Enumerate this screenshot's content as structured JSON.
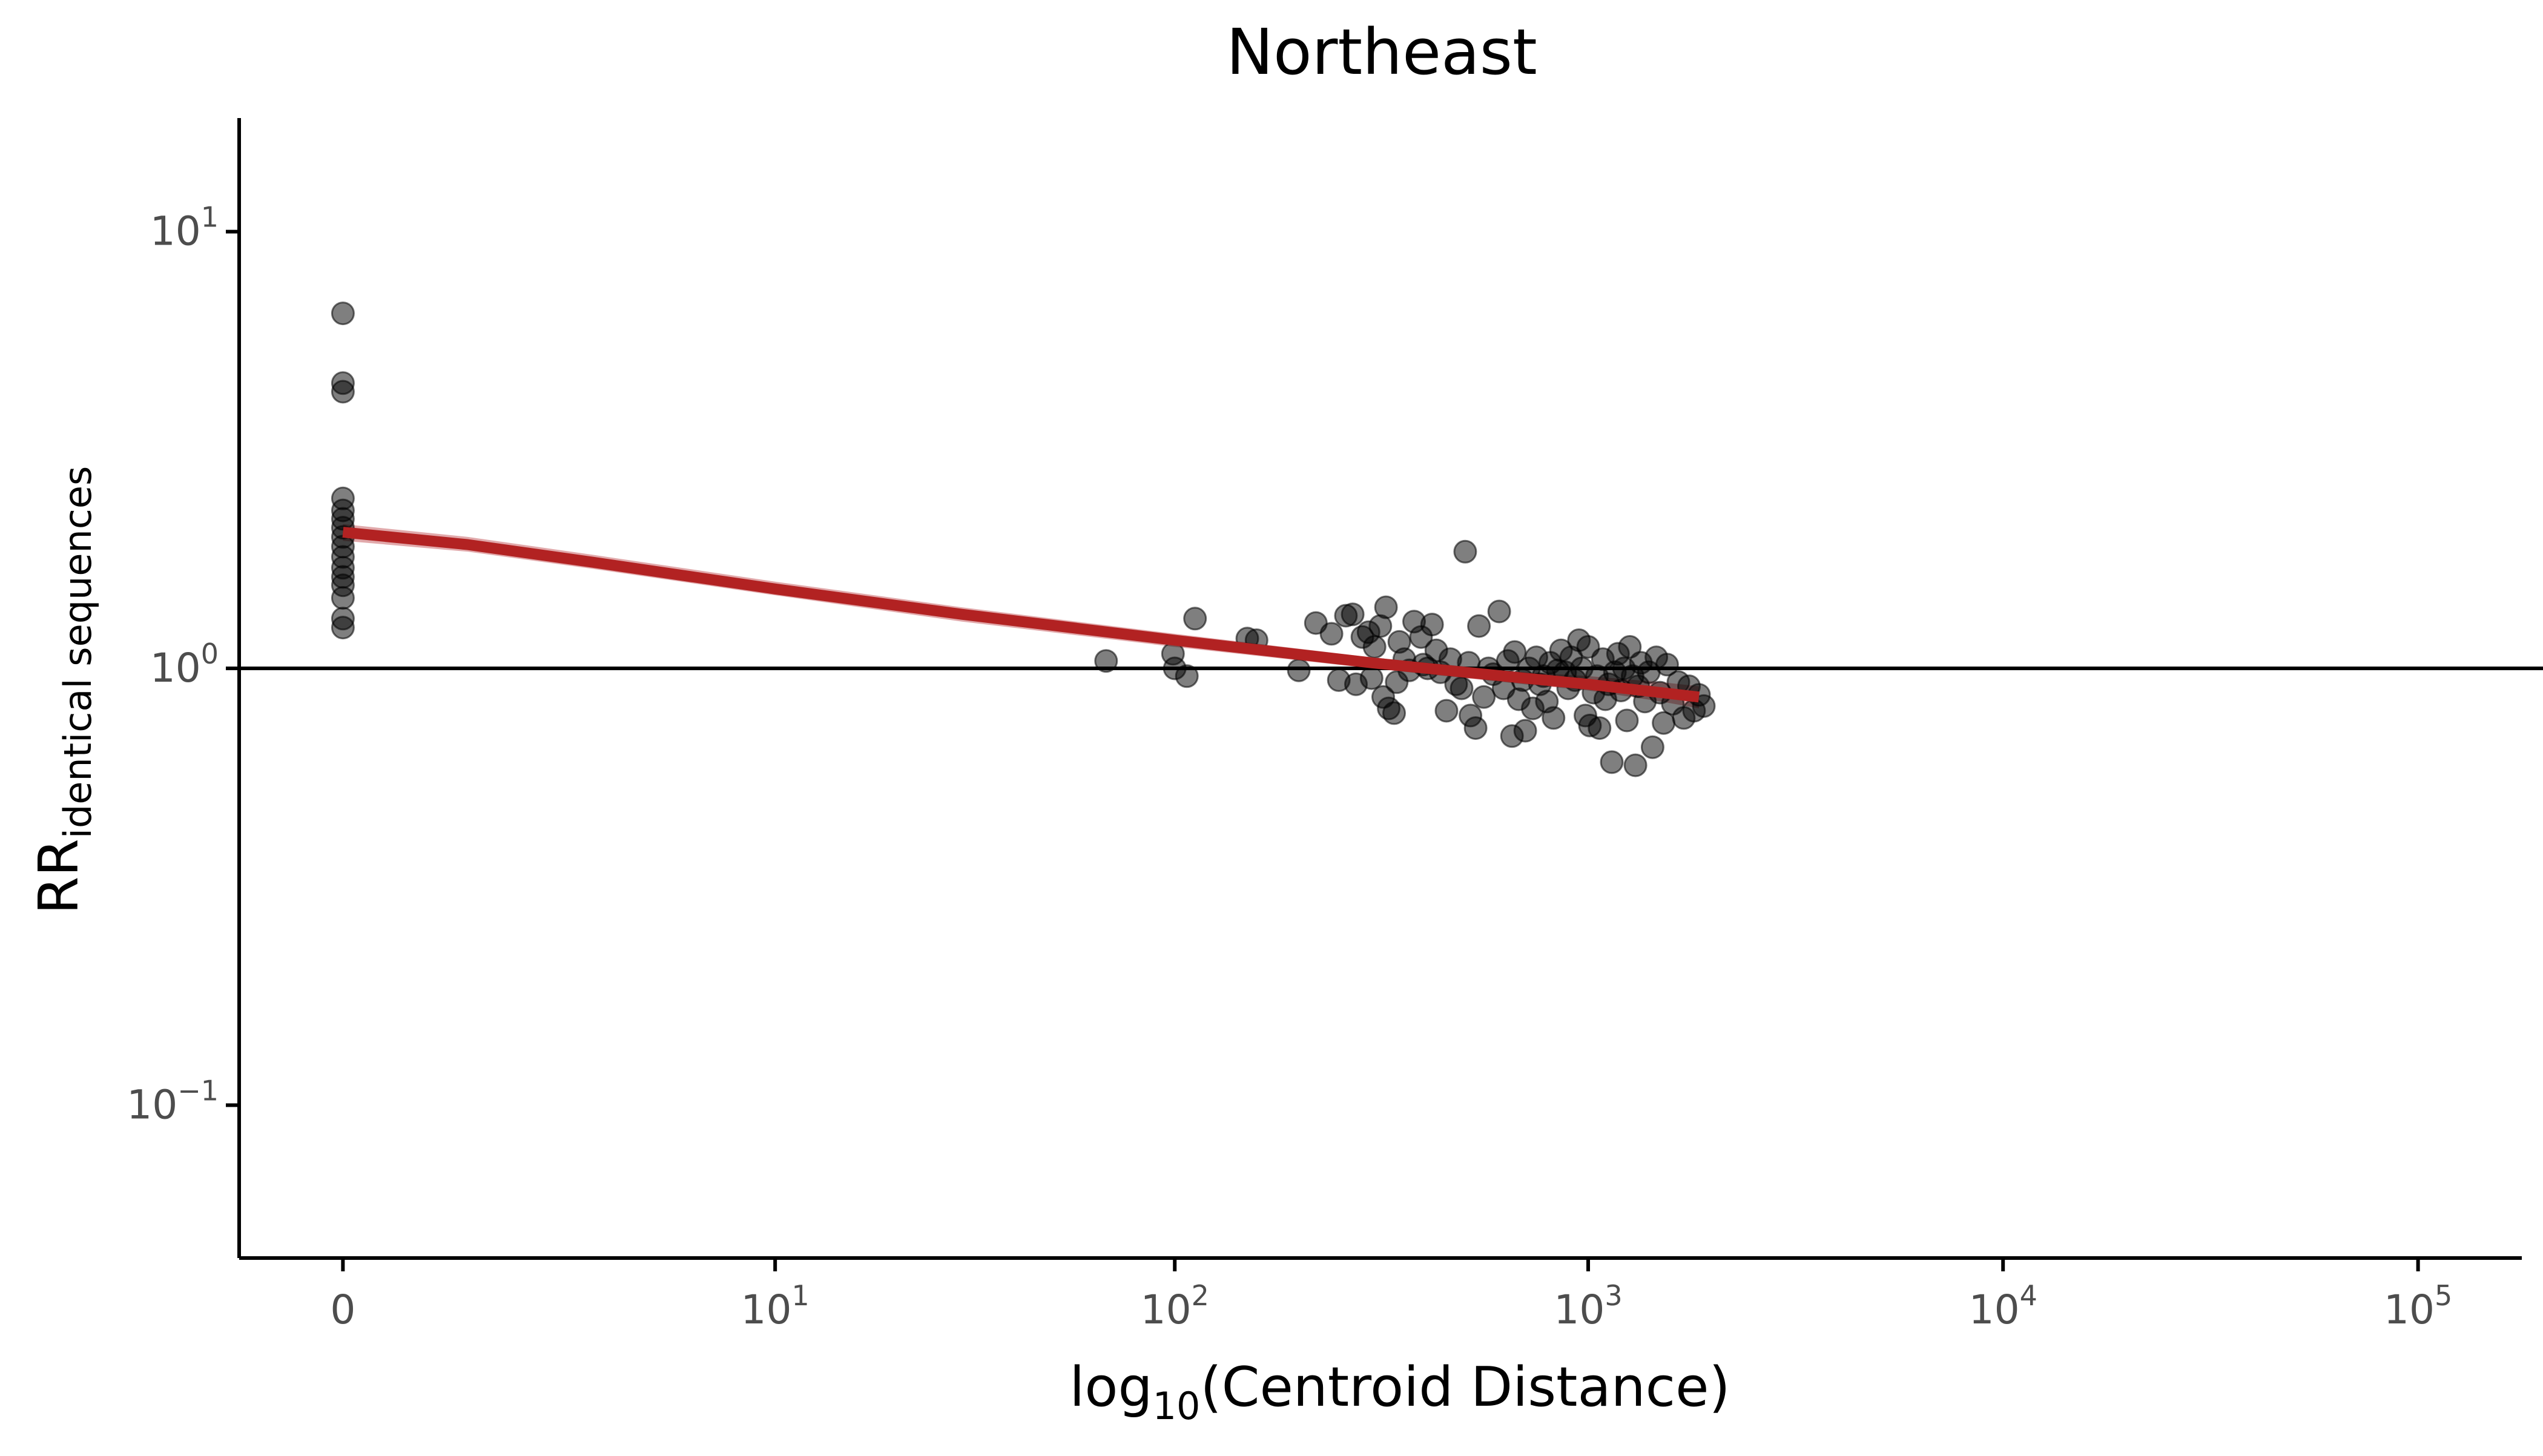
{
  "chart_data": {
    "type": "scatter",
    "title": "Northeast",
    "xlabel": {
      "main": "log",
      "sub": "10",
      "rest": "(Centroid Distance)"
    },
    "ylabel": {
      "main": "RR",
      "sub": "identical sequences"
    },
    "x_scale": "log10(1+x)",
    "y_scale": "log10",
    "xlim": [
      -0.25,
      5.25
    ],
    "ylim_log10": [
      -1.35,
      1.26
    ],
    "x_ticks": [
      {
        "value": 0,
        "base": "0",
        "exp": ""
      },
      {
        "value": 10,
        "base": "10",
        "exp": "1"
      },
      {
        "value": 100,
        "base": "10",
        "exp": "2"
      },
      {
        "value": 1000,
        "base": "10",
        "exp": "3"
      },
      {
        "value": 10000,
        "base": "10",
        "exp": "4"
      },
      {
        "value": 100000,
        "base": "10",
        "exp": "5"
      }
    ],
    "y_ticks": [
      {
        "value": 10,
        "base": "10",
        "exp": "1"
      },
      {
        "value": 1,
        "base": "10",
        "exp": "0"
      },
      {
        "value": 0.1,
        "base": "10",
        "exp": "−1"
      }
    ],
    "reference_line_y": 1,
    "grid": false,
    "legend": "none",
    "colors": {
      "points": "#000000",
      "trend_line": "#b22222",
      "ribbon": "#dc9a9c",
      "axis": "#000000",
      "tick_text": "#4d4d4d"
    },
    "series": [
      {
        "type": "points",
        "points": [
          [
            0,
            6.5
          ],
          [
            0,
            4.5
          ],
          [
            0,
            4.3
          ],
          [
            0,
            2.45
          ],
          [
            0,
            2.3
          ],
          [
            0,
            2.2
          ],
          [
            0,
            2.1
          ],
          [
            0,
            2.0
          ],
          [
            0,
            1.9
          ],
          [
            0,
            1.8
          ],
          [
            0,
            1.7
          ],
          [
            0,
            1.62
          ],
          [
            0,
            1.55
          ],
          [
            0,
            1.45
          ],
          [
            0,
            1.3
          ],
          [
            0,
            1.24
          ],
          [
            68,
            1.04
          ],
          [
            99,
            1.08
          ],
          [
            100,
            1.0
          ],
          [
            107,
            0.96
          ],
          [
            112,
            1.3
          ],
          [
            150,
            1.17
          ],
          [
            158,
            1.16
          ],
          [
            200,
            0.99
          ],
          [
            220,
            1.27
          ],
          [
            240,
            1.2
          ],
          [
            250,
            0.94
          ],
          [
            260,
            1.32
          ],
          [
            270,
            1.33
          ],
          [
            275,
            0.92
          ],
          [
            285,
            1.18
          ],
          [
            295,
            1.21
          ],
          [
            300,
            0.95
          ],
          [
            305,
            1.12
          ],
          [
            315,
            1.25
          ],
          [
            320,
            0.86
          ],
          [
            325,
            1.38
          ],
          [
            330,
            0.81
          ],
          [
            340,
            0.79
          ],
          [
            345,
            0.93
          ],
          [
            350,
            1.15
          ],
          [
            360,
            1.05
          ],
          [
            370,
            0.99
          ],
          [
            380,
            1.28
          ],
          [
            395,
            1.18
          ],
          [
            400,
            1.02
          ],
          [
            410,
            1.0
          ],
          [
            420,
            1.26
          ],
          [
            430,
            1.1
          ],
          [
            440,
            0.98
          ],
          [
            455,
            0.8
          ],
          [
            465,
            1.05
          ],
          [
            480,
            0.92
          ],
          [
            495,
            0.9
          ],
          [
            505,
            1.85
          ],
          [
            515,
            1.03
          ],
          [
            520,
            0.78
          ],
          [
            535,
            0.73
          ],
          [
            545,
            1.25
          ],
          [
            560,
            0.86
          ],
          [
            575,
            1.0
          ],
          [
            590,
            0.97
          ],
          [
            610,
            1.35
          ],
          [
            625,
            0.9
          ],
          [
            640,
            1.04
          ],
          [
            655,
            0.7
          ],
          [
            665,
            1.09
          ],
          [
            680,
            0.85
          ],
          [
            695,
            0.94
          ],
          [
            705,
            0.72
          ],
          [
            720,
            1.0
          ],
          [
            735,
            0.81
          ],
          [
            750,
            1.06
          ],
          [
            765,
            0.92
          ],
          [
            780,
            0.96
          ],
          [
            795,
            0.84
          ],
          [
            810,
            1.03
          ],
          [
            825,
            0.77
          ],
          [
            845,
            0.99
          ],
          [
            860,
            1.1
          ],
          [
            880,
            0.98
          ],
          [
            895,
            0.9
          ],
          [
            910,
            1.06
          ],
          [
            930,
            0.94
          ],
          [
            950,
            1.16
          ],
          [
            965,
            1.0
          ],
          [
            985,
            0.78
          ],
          [
            1000,
            1.12
          ],
          [
            1010,
            0.74
          ],
          [
            1030,
            0.88
          ],
          [
            1050,
            0.96
          ],
          [
            1065,
            0.73
          ],
          [
            1085,
            1.05
          ],
          [
            1100,
            0.85
          ],
          [
            1120,
            0.92
          ],
          [
            1140,
            0.61
          ],
          [
            1160,
            0.98
          ],
          [
            1180,
            1.08
          ],
          [
            1200,
            0.89
          ],
          [
            1220,
            1.0
          ],
          [
            1240,
            0.76
          ],
          [
            1260,
            1.12
          ],
          [
            1280,
            0.96
          ],
          [
            1300,
            0.6
          ],
          [
            1320,
            0.91
          ],
          [
            1340,
            1.03
          ],
          [
            1370,
            0.84
          ],
          [
            1400,
            0.98
          ],
          [
            1430,
            0.66
          ],
          [
            1460,
            1.06
          ],
          [
            1490,
            0.88
          ],
          [
            1520,
            0.75
          ],
          [
            1550,
            1.02
          ],
          [
            1600,
            0.83
          ],
          [
            1650,
            0.93
          ],
          [
            1700,
            0.77
          ],
          [
            1750,
            0.91
          ],
          [
            1800,
            0.8
          ],
          [
            1850,
            0.87
          ],
          [
            1900,
            0.82
          ]
        ]
      },
      {
        "type": "fit_line",
        "points": [
          [
            0,
            2.05
          ],
          [
            1,
            1.92
          ],
          [
            3,
            1.75
          ],
          [
            10,
            1.52
          ],
          [
            30,
            1.33
          ],
          [
            100,
            1.16
          ],
          [
            300,
            1.03
          ],
          [
            700,
            0.95
          ],
          [
            1000,
            0.92
          ],
          [
            1500,
            0.88
          ],
          [
            1850,
            0.86
          ]
        ]
      },
      {
        "type": "confidence_band",
        "lower": [
          [
            0,
            1.96
          ],
          [
            1,
            1.85
          ],
          [
            3,
            1.69
          ],
          [
            10,
            1.47
          ],
          [
            30,
            1.28
          ],
          [
            100,
            1.12
          ],
          [
            300,
            1.0
          ],
          [
            700,
            0.92
          ],
          [
            1000,
            0.89
          ],
          [
            1500,
            0.84
          ],
          [
            1850,
            0.81
          ]
        ],
        "upper": [
          [
            0,
            2.14
          ],
          [
            1,
            2.0
          ],
          [
            3,
            1.82
          ],
          [
            10,
            1.58
          ],
          [
            30,
            1.38
          ],
          [
            100,
            1.2
          ],
          [
            300,
            1.06
          ],
          [
            700,
            0.98
          ],
          [
            1000,
            0.96
          ],
          [
            1500,
            0.93
          ],
          [
            1850,
            0.91
          ]
        ]
      }
    ]
  }
}
